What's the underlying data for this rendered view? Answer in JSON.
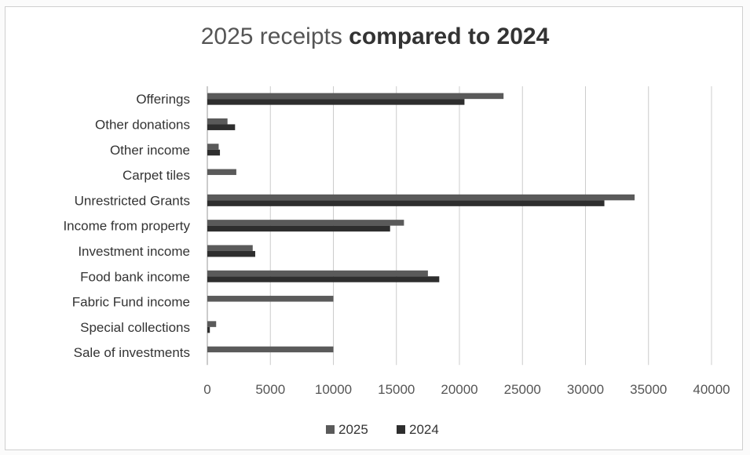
{
  "chart_data": {
    "type": "bar",
    "orientation": "horizontal",
    "title": "2025 receipts compared to 2024",
    "title_parts": [
      "2025 receipts ",
      "compared to 2024"
    ],
    "categories": [
      "Offerings",
      "Other donations",
      "Other income",
      "Carpet tiles",
      "Unrestricted Grants",
      "Income from property",
      "Investment income",
      "Food bank income",
      "Fabric Fund income",
      "Special collections",
      "Sale of investments"
    ],
    "series": [
      {
        "name": "2025",
        "color": "#5a5a5a",
        "values": [
          23500,
          1600,
          900,
          2300,
          33900,
          15600,
          3600,
          17500,
          10000,
          700,
          10000
        ]
      },
      {
        "name": "2024",
        "color": "#2e2e2e",
        "values": [
          20400,
          2200,
          1000,
          0,
          31500,
          14500,
          3800,
          18400,
          0,
          200,
          0
        ]
      }
    ],
    "x_ticks": [
      "0",
      "5000",
      "10000",
      "15000",
      "20000",
      "25000",
      "30000",
      "35000",
      "40000"
    ],
    "xlim": [
      0,
      40000
    ],
    "grid": "vertical",
    "legend": "bottom",
    "xlabel": "",
    "ylabel": ""
  }
}
